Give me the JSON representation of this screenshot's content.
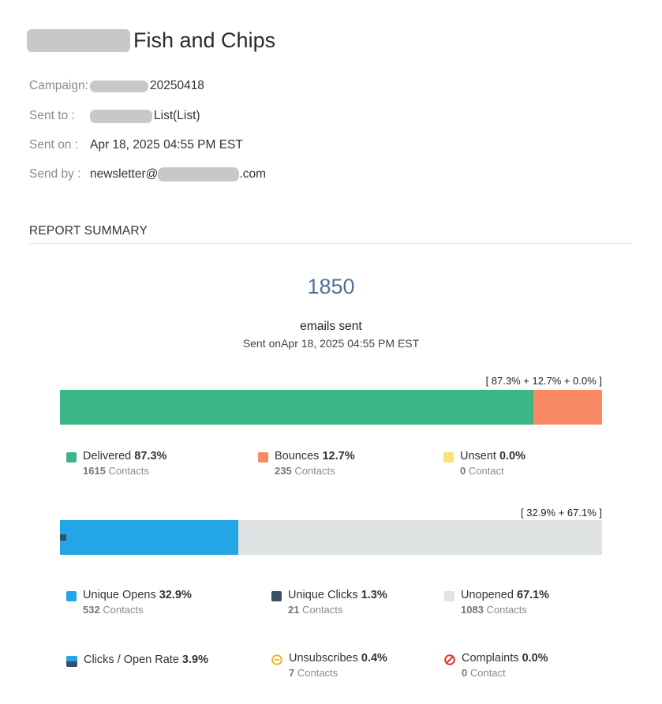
{
  "header": {
    "title": "Fish and Chips"
  },
  "meta": {
    "campaign_label": "Campaign:",
    "campaign_value": "20250418",
    "sent_to_label": "Sent to :",
    "sent_to_value": "List(List)",
    "sent_on_label": "Sent on :",
    "sent_on_value": "Apr 18, 2025 04:55 PM EST",
    "send_by_label": "Send by :",
    "send_by_prefix": "newsletter@",
    "send_by_suffix": ".com"
  },
  "summary": {
    "section_title": "REPORT SUMMARY",
    "total": "1850",
    "total_label": "emails sent",
    "sent_on_sub": "Sent onApr 18, 2025 04:55 PM EST"
  },
  "delivery_bar": {
    "label": "[ 87.3% + 12.7% + 0.0% ]",
    "fractions": {
      "delivered": 0.873,
      "bounces": 0.127,
      "unsent": 0.0
    },
    "colors": {
      "delivered": "#3db687",
      "bounces": "#fa8965",
      "unsent": "#fae17e"
    }
  },
  "delivery_legend": {
    "delivered": {
      "name": "Delivered",
      "pct": "87.3%",
      "count": "1615",
      "unit": "Contacts"
    },
    "bounces": {
      "name": "Bounces",
      "pct": "12.7%",
      "count": "235",
      "unit": "Contacts"
    },
    "unsent": {
      "name": "Unsent",
      "pct": "0.0%",
      "count": "0",
      "unit": "Contact"
    }
  },
  "open_bar": {
    "label": "[ 32.9% + 67.1% ]",
    "fractions": {
      "opens": 0.329,
      "unopened": 0.671
    },
    "colors": {
      "opens": "#23a5e8",
      "unopened": "#dfe3e4",
      "clicks": "#3a4e66"
    }
  },
  "engagement_legend": {
    "opens": {
      "name": "Unique Opens",
      "pct": "32.9%",
      "count": "532",
      "unit": "Contacts"
    },
    "clicks": {
      "name": "Unique Clicks",
      "pct": "1.3%",
      "count": "21",
      "unit": "Contacts"
    },
    "unopened": {
      "name": "Unopened",
      "pct": "67.1%",
      "count": "1083",
      "unit": "Contacts"
    },
    "click_open_rate": {
      "name": "Clicks / Open Rate",
      "pct": "3.9%",
      "icon": "half-split-square-icon"
    },
    "unsubscribes": {
      "name": "Unsubscribes",
      "pct": "0.4%",
      "count": "7",
      "unit": "Contacts",
      "icon": "minus-circle-icon",
      "color": "#f0b429"
    },
    "complaints": {
      "name": "Complaints",
      "pct": "0.0%",
      "count": "0",
      "unit": "Contact",
      "icon": "prohibited-icon",
      "color": "#e5332a"
    }
  }
}
